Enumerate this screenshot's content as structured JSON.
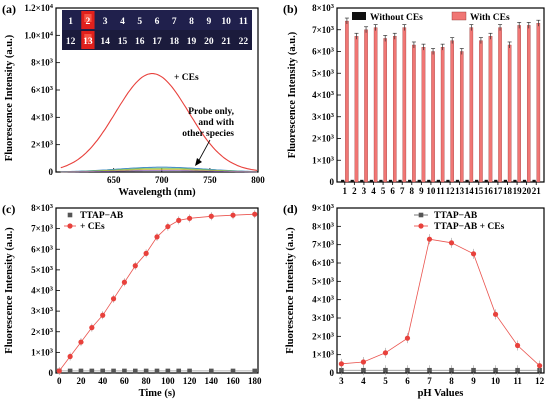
{
  "panels": {
    "a": "(a)",
    "b": "(b)",
    "c": "(c)",
    "d": "(d)"
  },
  "photo": {
    "row1": [
      "1",
      "2",
      "3",
      "4",
      "5",
      "6",
      "7",
      "8",
      "9",
      "10",
      "11"
    ],
    "row2": [
      "12",
      "13",
      "14",
      "15",
      "16",
      "17",
      "18",
      "19",
      "20",
      "21",
      "22"
    ],
    "bright_vials": [
      "2",
      "13"
    ]
  },
  "chart_data": [
    {
      "id": "a",
      "type": "line",
      "xlabel": "Wavelength (nm)",
      "ylabel": "Fluorescence Intensity (a.u.)",
      "xlim": [
        590,
        800
      ],
      "ylim": [
        0,
        12000
      ],
      "x_ticks": [
        "650",
        "700",
        "750",
        "800"
      ],
      "y_ticks": [
        {
          "base": "0",
          "exp": ""
        },
        {
          "base": "2×10",
          "exp": "3"
        },
        {
          "base": "4×10",
          "exp": "3"
        },
        {
          "base": "6×10",
          "exp": "3"
        },
        {
          "base": "8×10",
          "exp": "3"
        },
        {
          "base": "1.0×10",
          "exp": "4"
        },
        {
          "base": "1.2×10",
          "exp": "4"
        }
      ],
      "annotations": [
        "+ CEs",
        "Probe only,",
        "and with",
        "other species"
      ],
      "series": [
        {
          "name": "+ CEs",
          "color": "#e8413c",
          "peak_x": 690,
          "peak_y": 7200,
          "width": 38
        },
        {
          "name": "Probe only, and with other species",
          "color": "#4a90c8",
          "peak_x": 700,
          "peak_y": 350,
          "width": 45
        }
      ]
    },
    {
      "id": "b",
      "type": "bar",
      "ylabel": "Fluorescence Intensity (a.u.)",
      "ylim": [
        0,
        8000
      ],
      "categories": [
        "1",
        "2",
        "3",
        "4",
        "5",
        "6",
        "7",
        "8",
        "9",
        "10",
        "11",
        "12",
        "13",
        "14",
        "15",
        "16",
        "17",
        "18",
        "19",
        "20",
        "21"
      ],
      "y_ticks": [
        {
          "base": "0",
          "exp": ""
        },
        {
          "base": "1×10",
          "exp": "3"
        },
        {
          "base": "2×10",
          "exp": "3"
        },
        {
          "base": "3×10",
          "exp": "3"
        },
        {
          "base": "4×10",
          "exp": "3"
        },
        {
          "base": "5×10",
          "exp": "3"
        },
        {
          "base": "6×10",
          "exp": "3"
        },
        {
          "base": "7×10",
          "exp": "3"
        },
        {
          "base": "8×10",
          "exp": "3"
        }
      ],
      "legend": "top-right",
      "series": [
        {
          "name": "Without CEs",
          "color": "#111111",
          "values": [
            100,
            100,
            100,
            100,
            100,
            100,
            100,
            100,
            100,
            100,
            100,
            100,
            100,
            100,
            100,
            100,
            100,
            100,
            100,
            100,
            100
          ]
        },
        {
          "name": "With CEs",
          "color": "#f07674",
          "values": [
            7400,
            6700,
            7000,
            7100,
            6600,
            6700,
            7100,
            6300,
            6200,
            6000,
            6200,
            6500,
            6000,
            7100,
            6500,
            6700,
            7100,
            6300,
            7200,
            7200,
            7300
          ]
        }
      ]
    },
    {
      "id": "c",
      "type": "line",
      "xlabel": "Time (s)",
      "ylabel": "Fluorescence Intensity (a.u.)",
      "xlim": [
        -3,
        183
      ],
      "ylim": [
        0,
        8000
      ],
      "x_ticks": [
        "0",
        "20",
        "40",
        "60",
        "80",
        "100",
        "120",
        "140",
        "160",
        "180"
      ],
      "y_ticks": [
        {
          "base": "0",
          "exp": ""
        },
        {
          "base": "1×10",
          "exp": "3"
        },
        {
          "base": "2×10",
          "exp": "3"
        },
        {
          "base": "3×10",
          "exp": "3"
        },
        {
          "base": "4×10",
          "exp": "3"
        },
        {
          "base": "5×10",
          "exp": "3"
        },
        {
          "base": "6×10",
          "exp": "3"
        },
        {
          "base": "7×10",
          "exp": "3"
        },
        {
          "base": "8×10",
          "exp": "3"
        }
      ],
      "legend": "top-left",
      "series": [
        {
          "name": "TTAP−AB",
          "color": "#555555",
          "marker": "square",
          "x": [
            0,
            10,
            20,
            30,
            40,
            50,
            60,
            70,
            80,
            90,
            100,
            110,
            120,
            140,
            160,
            180
          ],
          "y": [
            100,
            100,
            100,
            100,
            100,
            100,
            100,
            100,
            100,
            100,
            100,
            100,
            100,
            100,
            100,
            100
          ]
        },
        {
          "name": "+ CEs",
          "color": "#e8413c",
          "marker": "circle",
          "x": [
            0,
            10,
            20,
            30,
            40,
            50,
            60,
            70,
            80,
            90,
            100,
            110,
            120,
            140,
            160,
            180
          ],
          "y": [
            100,
            800,
            1500,
            2200,
            2800,
            3600,
            4400,
            5200,
            5800,
            6600,
            7100,
            7400,
            7500,
            7600,
            7650,
            7700
          ]
        }
      ]
    },
    {
      "id": "d",
      "type": "line",
      "xlabel": "pH Values",
      "ylabel": "Fluorescence Intensity (a.u.)",
      "xlim": [
        2.8,
        12.2
      ],
      "ylim": [
        0,
        9000
      ],
      "x_ticks": [
        "3",
        "4",
        "5",
        "6",
        "7",
        "8",
        "9",
        "10",
        "11",
        "12"
      ],
      "y_ticks": [
        {
          "base": "0",
          "exp": ""
        },
        {
          "base": "1×10",
          "exp": "3"
        },
        {
          "base": "2×10",
          "exp": "3"
        },
        {
          "base": "3×10",
          "exp": "3"
        },
        {
          "base": "4×10",
          "exp": "3"
        },
        {
          "base": "5×10",
          "exp": "3"
        },
        {
          "base": "6×10",
          "exp": "3"
        },
        {
          "base": "7×10",
          "exp": "3"
        },
        {
          "base": "8×10",
          "exp": "3"
        },
        {
          "base": "9×10",
          "exp": "3"
        }
      ],
      "legend": "top-right",
      "series": [
        {
          "name": "TTAP−AB",
          "color": "#555555",
          "marker": "square",
          "x": [
            3,
            4,
            5,
            6,
            7,
            8,
            9,
            10,
            11,
            12
          ],
          "y": [
            150,
            150,
            150,
            150,
            150,
            150,
            150,
            150,
            150,
            150
          ]
        },
        {
          "name": "TTAP−AB + CEs",
          "color": "#e8413c",
          "marker": "circle",
          "x": [
            3,
            4,
            5,
            6,
            7,
            8,
            9,
            10,
            11,
            12
          ],
          "y": [
            500,
            600,
            1100,
            1900,
            7300,
            7100,
            6500,
            3200,
            1500,
            400
          ]
        }
      ]
    }
  ]
}
